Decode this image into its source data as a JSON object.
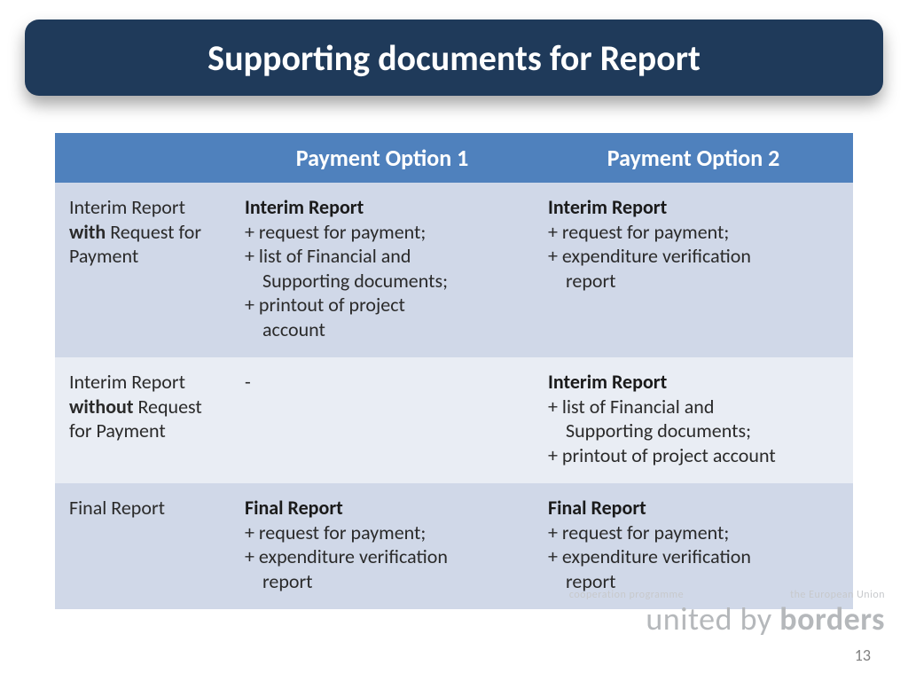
{
  "title": "Supporting documents for Report",
  "table": {
    "headers": {
      "blank": "",
      "col1": "Payment Option 1",
      "col2": "Payment Option 2"
    },
    "rows": [
      {
        "label_pre": "Interim Report ",
        "label_em": "with",
        "label_post": " Request for Payment",
        "c1_title": "Interim Report",
        "c1_l1": "+ request for payment;",
        "c1_l2": "+ list of Financial and",
        "c1_l2b": "Supporting documents;",
        "c1_l3": "+ printout of project",
        "c1_l3b": "account",
        "c2_title": "Interim Report",
        "c2_l1": "+ request for payment;",
        "c2_l2": "+ expenditure verification",
        "c2_l2b": "report"
      },
      {
        "label_pre": "Interim Report ",
        "label_em": "without",
        "label_post": " Request for Payment",
        "c1_text": "-",
        "c2_title": "Interim Report",
        "c2_l1": "+ list of Financial and",
        "c2_l1b": "Supporting documents;",
        "c2_l2": "+ printout of project account"
      },
      {
        "label_pre": "Final Report",
        "c1_title": "Final Report",
        "c1_l1": "+ request for payment;",
        "c1_l2": "+ expenditure verification",
        "c1_l2b": "report",
        "c2_title": "Final Report",
        "c2_l1": "+ request for payment;",
        "c2_l2": "+ expenditure verification",
        "c2_l2b": "report"
      }
    ]
  },
  "footer": {
    "small_left": "cooperation programme",
    "small_right": "the European Union",
    "brand_light": "united by ",
    "brand_bold": "borders",
    "page": "13"
  },
  "colors": {
    "title_bg": "#1f3a5a",
    "header_bg": "#4f81bd",
    "band_a": "#d0d8e8",
    "band_b": "#e9edf4",
    "text": "#2a2a2a",
    "brand": "#b5b8bb"
  }
}
